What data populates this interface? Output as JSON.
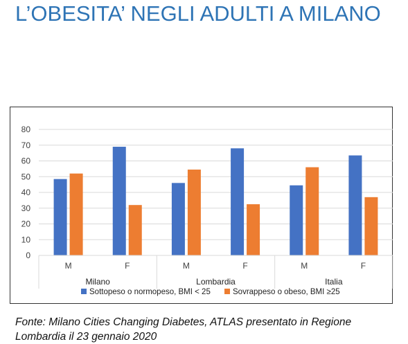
{
  "slide": {
    "title": "L’OBESITA’ NEGLI ADULTI A MILANO",
    "source_line1": "Fonte: Milano Cities Changing Diabetes, ATLAS presentato in Regione",
    "source_line2": "Lombardia il 23 gennaio 2020"
  },
  "colors": {
    "title": "#2E74B5",
    "series_blue": "#4472C4",
    "series_orange": "#ED7D31",
    "gridline": "#D9D9D9",
    "axis_text": "#404040"
  },
  "chart_data": {
    "type": "bar",
    "groups": [
      "Milano",
      "Lombardia",
      "Italia"
    ],
    "categories": [
      "M",
      "F",
      "M",
      "F",
      "M",
      "F"
    ],
    "series": [
      {
        "name": "Sottopeso  o normopeso,  BMI < 25",
        "values": [
          48.5,
          69,
          46,
          68,
          44.5,
          63.5
        ]
      },
      {
        "name": "Sovrappeso o obeso, BMI ≥25",
        "values": [
          52,
          32,
          54.5,
          32.5,
          56,
          37
        ]
      }
    ],
    "ylim": [
      0,
      80
    ],
    "yticks": [
      "0",
      "10",
      "20",
      "30",
      "40",
      "50",
      "60",
      "70",
      "80"
    ],
    "grid": true,
    "legend": "bottom"
  }
}
